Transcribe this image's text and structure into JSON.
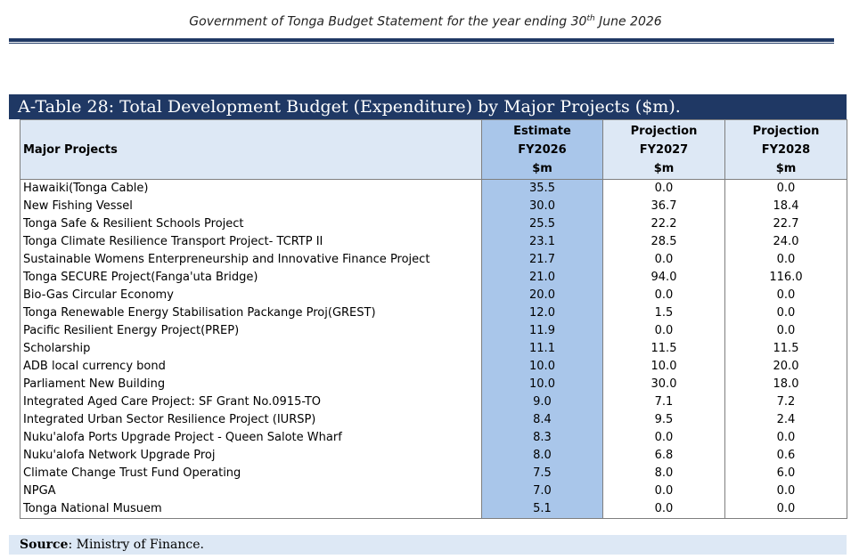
{
  "header": {
    "text_before": "Government of Tonga Budget Statement for the year ending 30",
    "superscript": "th",
    "text_after": " June 2026"
  },
  "table": {
    "title": "A-Table 28: Total Development Budget (Expenditure) by Major Projects ($m).",
    "columns": {
      "name": "Major Projects",
      "estimate": [
        "Estimate",
        "FY2026",
        "$m"
      ],
      "projection1": [
        "Projection",
        "FY2027",
        "$m"
      ],
      "projection2": [
        "Projection",
        "FY2028",
        "$m"
      ]
    },
    "rows": [
      {
        "name": "Hawaiki(Tonga Cable)",
        "fy2026": "35.5",
        "fy2027": "0.0",
        "fy2028": "0.0"
      },
      {
        "name": "New Fishing Vessel",
        "fy2026": "30.0",
        "fy2027": "36.7",
        "fy2028": "18.4"
      },
      {
        "name": "Tonga Safe & Resilient Schools Project",
        "fy2026": "25.5",
        "fy2027": "22.2",
        "fy2028": "22.7"
      },
      {
        "name": "Tonga Climate Resilience Transport Project- TCRTP II",
        "fy2026": "23.1",
        "fy2027": "28.5",
        "fy2028": "24.0"
      },
      {
        "name": "Sustainable Womens Enterpreneurship and Innovative Finance Project",
        "fy2026": "21.7",
        "fy2027": "0.0",
        "fy2028": "0.0"
      },
      {
        "name": "Tonga SECURE Project(Fanga'uta Bridge)",
        "fy2026": "21.0",
        "fy2027": "94.0",
        "fy2028": "116.0"
      },
      {
        "name": "Bio-Gas Circular Economy",
        "fy2026": "20.0",
        "fy2027": "0.0",
        "fy2028": "0.0"
      },
      {
        "name": "Tonga Renewable Energy Stabilisation Packange Proj(GREST)",
        "fy2026": "12.0",
        "fy2027": "1.5",
        "fy2028": "0.0"
      },
      {
        "name": "Pacific Resilient Energy Project(PREP)",
        "fy2026": "11.9",
        "fy2027": "0.0",
        "fy2028": "0.0"
      },
      {
        "name": "Scholarship",
        "fy2026": "11.1",
        "fy2027": "11.5",
        "fy2028": "11.5"
      },
      {
        "name": "ADB local currency bond",
        "fy2026": "10.0",
        "fy2027": "10.0",
        "fy2028": "20.0"
      },
      {
        "name": "Parliament New Building",
        "fy2026": "10.0",
        "fy2027": "30.0",
        "fy2028": "18.0"
      },
      {
        "name": "Integrated Aged Care Project: SF Grant No.0915-TO",
        "fy2026": "9.0",
        "fy2027": "7.1",
        "fy2028": "7.2"
      },
      {
        "name": "Integrated Urban Sector Resilience Project (IURSP)",
        "fy2026": "8.4",
        "fy2027": "9.5",
        "fy2028": "2.4"
      },
      {
        "name": "Nuku'alofa Ports Upgrade Project - Queen Salote Wharf",
        "fy2026": "8.3",
        "fy2027": "0.0",
        "fy2028": "0.0"
      },
      {
        "name": "Nuku'alofa Network Upgrade Proj",
        "fy2026": "8.0",
        "fy2027": "6.8",
        "fy2028": "0.6"
      },
      {
        "name": "Climate Change Trust Fund Operating",
        "fy2026": "7.5",
        "fy2027": "8.0",
        "fy2028": "6.0"
      },
      {
        "name": "NPGA",
        "fy2026": "7.0",
        "fy2027": "0.0",
        "fy2028": "0.0"
      },
      {
        "name": "Tonga National Musuem",
        "fy2026": "5.1",
        "fy2027": "0.0",
        "fy2028": "0.0"
      }
    ]
  },
  "source": {
    "label": "Source",
    "text": ": Ministry of Finance."
  },
  "colors": {
    "title_bar": "#1f3864",
    "estimate_column": "#a9c6ea",
    "header_fill": "#dde8f5"
  }
}
